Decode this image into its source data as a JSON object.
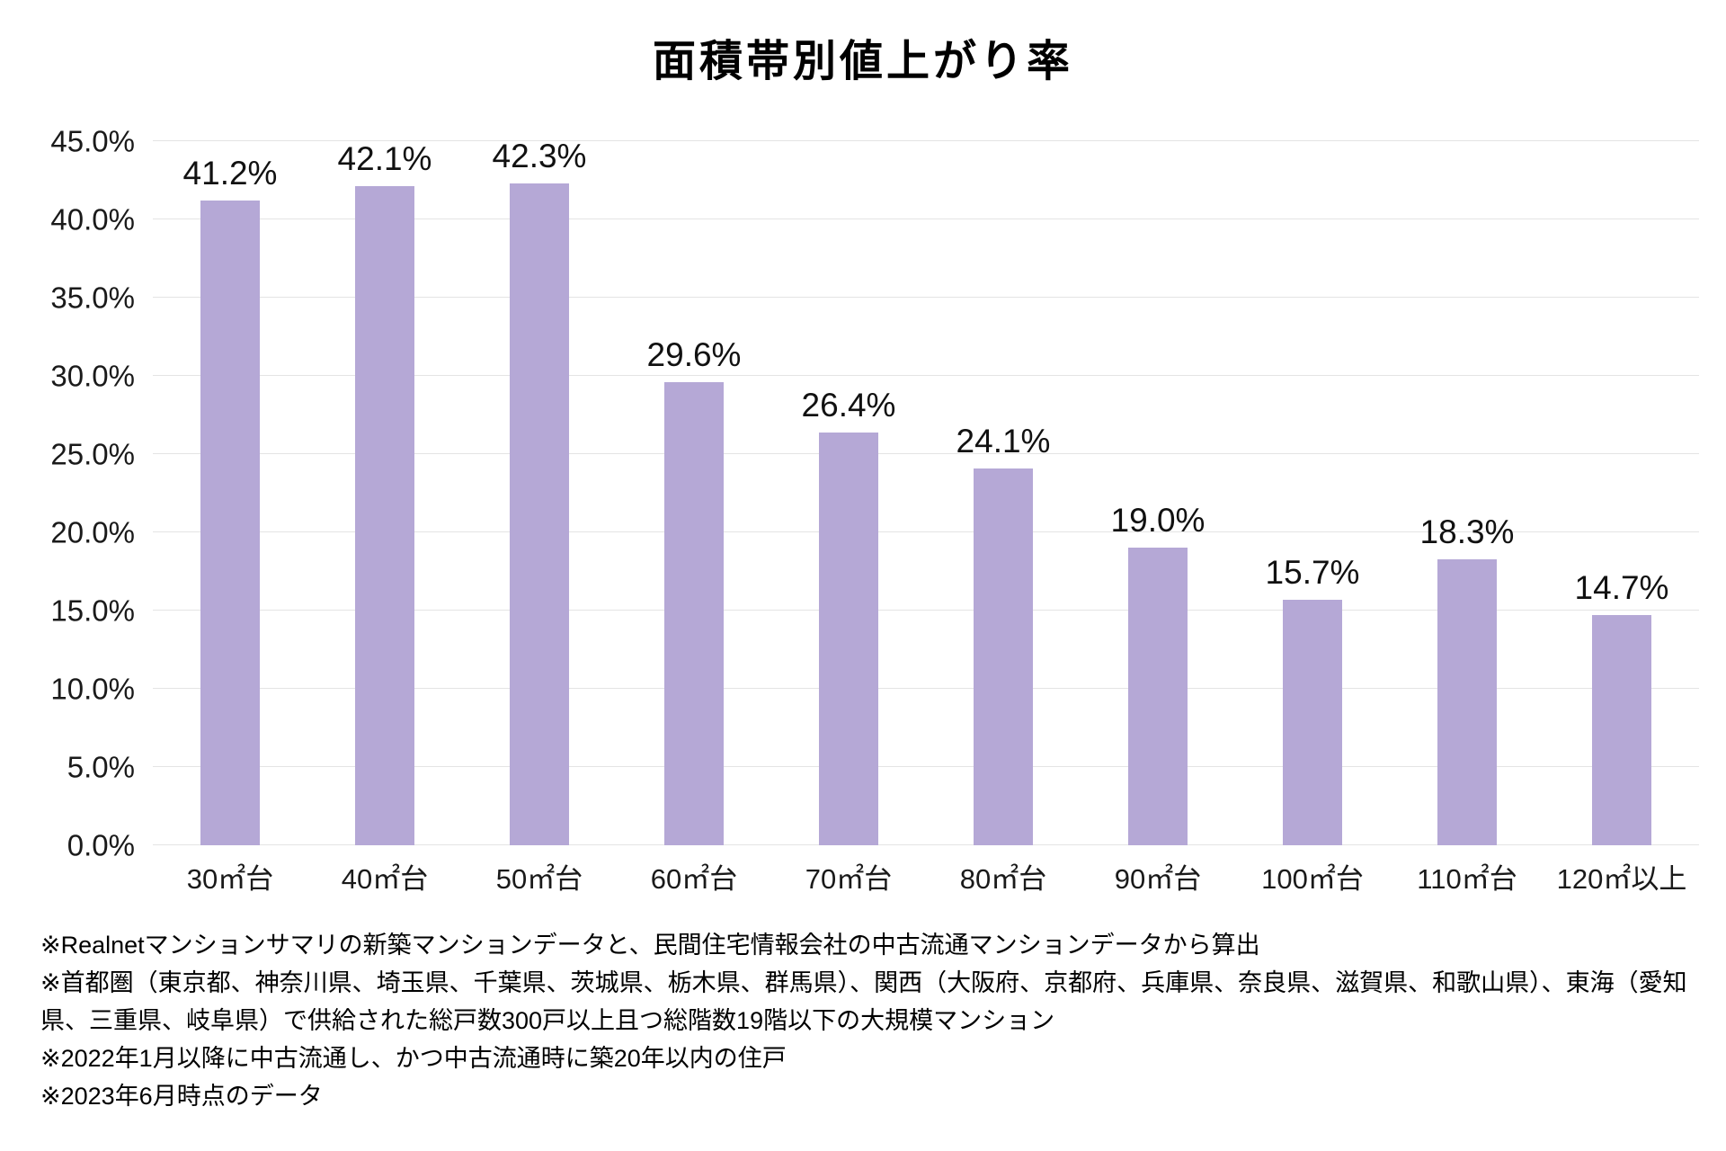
{
  "title": "面積帯別値上がり率",
  "chart_data": {
    "type": "bar",
    "title": "面積帯別値上がり率",
    "categories": [
      "30㎡台",
      "40㎡台",
      "50㎡台",
      "60㎡台",
      "70㎡台",
      "80㎡台",
      "90㎡台",
      "100㎡台",
      "110㎡台",
      "120㎡以上"
    ],
    "values": [
      41.2,
      42.1,
      42.3,
      29.6,
      26.4,
      24.1,
      19.0,
      15.7,
      18.3,
      14.7
    ],
    "data_labels": [
      "41.2%",
      "42.1%",
      "42.3%",
      "29.6%",
      "26.4%",
      "24.1%",
      "19.0%",
      "15.7%",
      "18.3%",
      "14.7%"
    ],
    "xlabel": "",
    "ylabel": "",
    "ylim": [
      0,
      45
    ],
    "ytick_step": 5,
    "ytick_labels": [
      "0.0%",
      "5.0%",
      "10.0%",
      "15.0%",
      "20.0%",
      "25.0%",
      "30.0%",
      "35.0%",
      "40.0%",
      "45.0%"
    ],
    "grid": true,
    "legend_position": "none",
    "bar_color": "#b5a8d6",
    "gridline_color": "#e4e4e4"
  },
  "footnotes": [
    "※Realnetマンションサマリの新築マンションデータと、民間住宅情報会社の中古流通マンションデータから算出",
    "※首都圏（東京都、神奈川県、埼玉県、千葉県、茨城県、栃木県、群馬県）、関西（大阪府、京都府、兵庫県、奈良県、滋賀県、和歌山県）、東海（愛知県、三重県、岐阜県）で供給された総戸数300戸以上且つ総階数19階以下の大規模マンション",
    "※2022年1月以降に中古流通し、かつ中古流通時に築20年以内の住戸",
    "※2023年6月時点のデータ"
  ]
}
